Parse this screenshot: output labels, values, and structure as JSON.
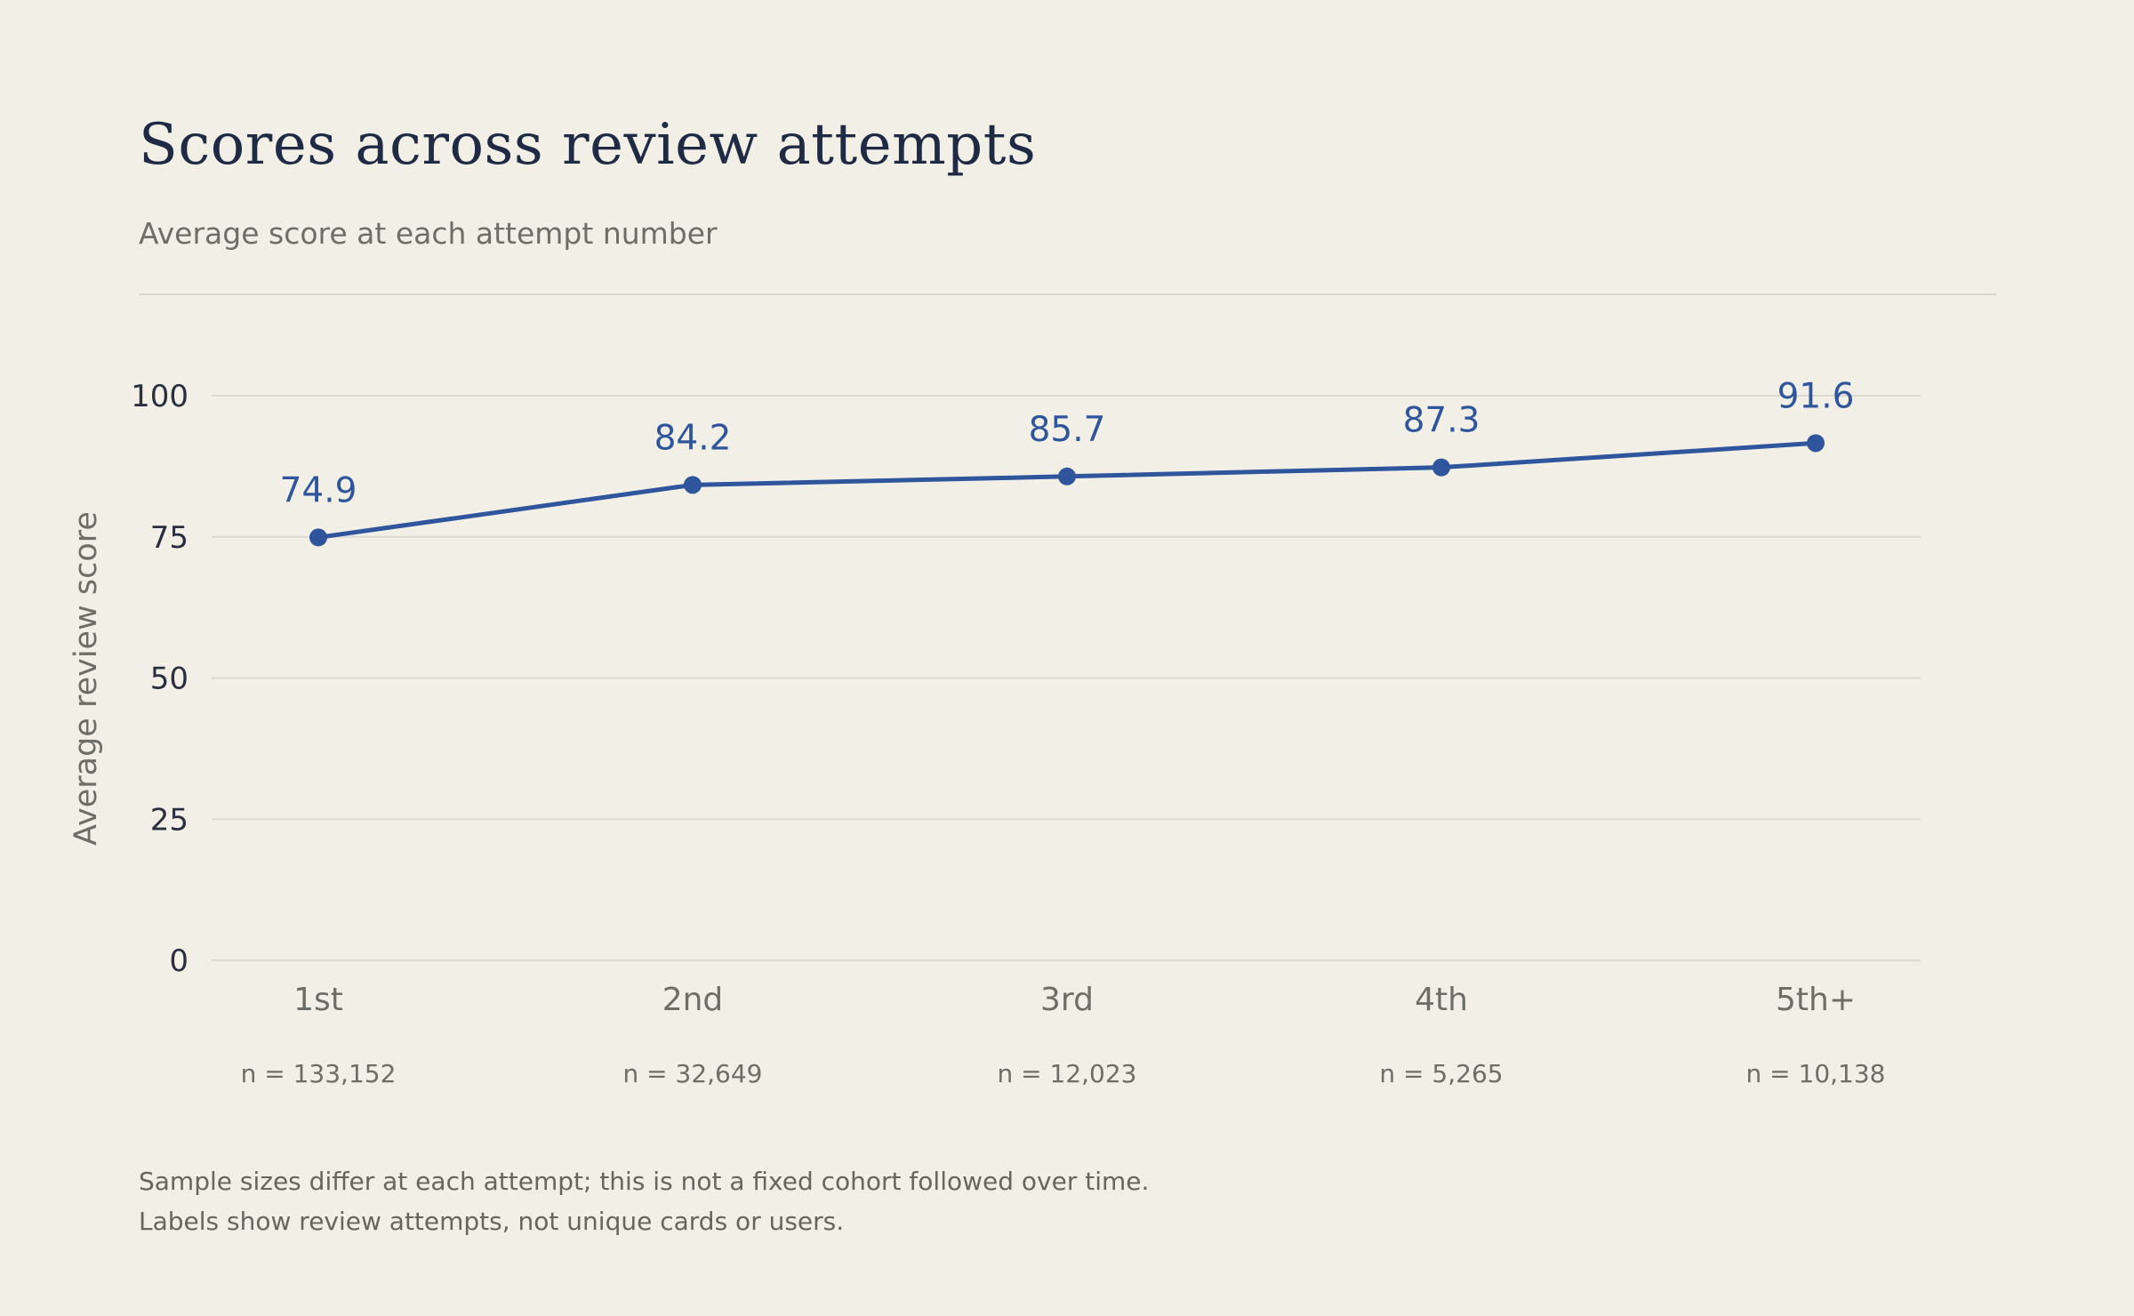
{
  "title": "Scores across review attempts",
  "subtitle": "Average score at each attempt number",
  "notes": [
    "Sample sizes differ at each attempt; this is not a fixed cohort followed over time.",
    "Labels show review attempts, not unique cards or users."
  ],
  "colors": {
    "background": "#f2f0e6",
    "line": "#2f559c",
    "title": "#1f2a44",
    "muted": "#6e6e68",
    "grid": "#dcdad0"
  },
  "chart_data": {
    "type": "line",
    "categories": [
      "1st",
      "2nd",
      "3rd",
      "4th",
      "5th+"
    ],
    "sample_labels": [
      "n = 133,152",
      "n = 32,649",
      "n = 12,023",
      "n = 5,265",
      "n = 10,138"
    ],
    "series": [
      {
        "values": [
          74.9,
          84.2,
          85.7,
          87.3,
          91.6
        ],
        "data_labels": [
          "74.9",
          "84.2",
          "85.7",
          "87.3",
          "91.6"
        ]
      }
    ],
    "ylabel": "Average review score",
    "xlabel": "",
    "ylim": [
      0,
      100
    ],
    "yticks": [
      0,
      25,
      50,
      75,
      100
    ],
    "grid": true,
    "legend": "none"
  }
}
